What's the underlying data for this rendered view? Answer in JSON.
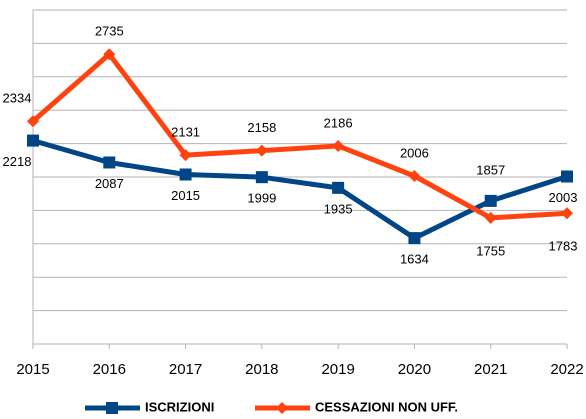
{
  "chart_data": {
    "type": "line",
    "x": [
      2015,
      2016,
      2017,
      2018,
      2019,
      2020,
      2021,
      2022
    ],
    "series": [
      {
        "name": "ISCRIZIONI",
        "color": "#004586",
        "values": [
          2218,
          2087,
          2015,
          1999,
          1935,
          1634,
          1857,
          2003
        ]
      },
      {
        "name": "CESSAZIONI NON UFF.",
        "color": "#ff420e",
        "values": [
          2334,
          2735,
          2131,
          2158,
          2186,
          2006,
          1755,
          1783
        ]
      }
    ],
    "xlim": [
      2015,
      2022
    ],
    "xticks": [
      2015,
      2016,
      2017,
      2018,
      2019,
      2020,
      2021,
      2022
    ],
    "ylim": [
      1000,
      3000
    ],
    "yticks": [
      1000,
      1200,
      1400,
      1600,
      1800,
      2000,
      2200,
      2400,
      2600,
      2800,
      3000
    ],
    "grid": true
  }
}
